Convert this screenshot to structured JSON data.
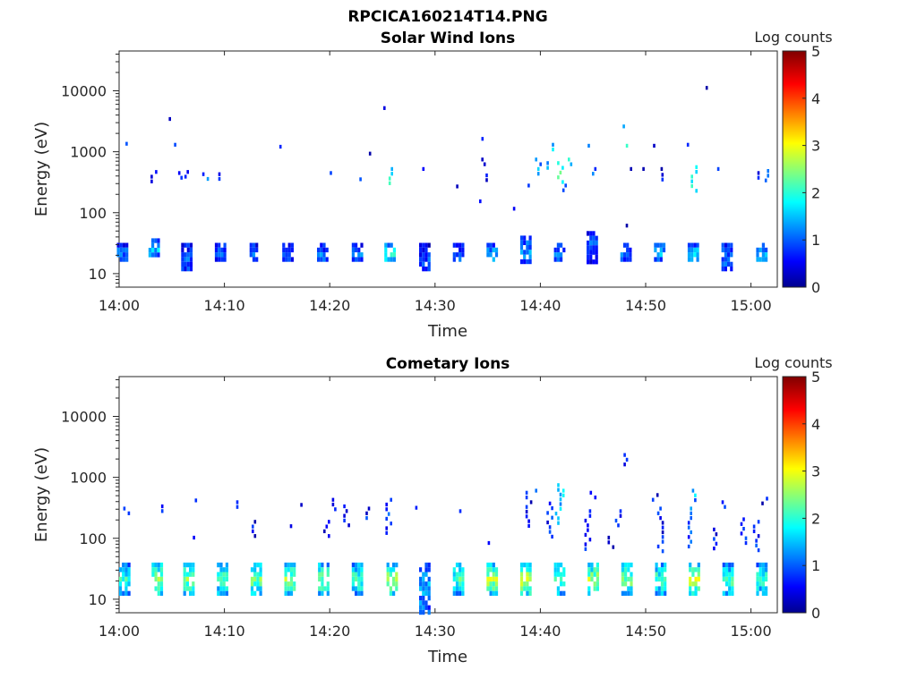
{
  "figure_title": "RPCICA160214T14.PNG",
  "chart_data": [
    {
      "type": "heatmap",
      "title": "Solar Wind Ions",
      "xlabel": "Time",
      "ylabel": "Energy (eV)",
      "x_ticks": [
        "14:00",
        "14:10",
        "14:20",
        "14:30",
        "14:40",
        "14:50",
        "15:00"
      ],
      "x_range_minutes": [
        0,
        62.5
      ],
      "y_scale": "log",
      "y_ticks": [
        10,
        100,
        1000,
        10000
      ],
      "y_range_eV": [
        6,
        45000
      ],
      "colorbar": {
        "label": "Log counts",
        "ticks": [
          0,
          1,
          2,
          3,
          4,
          5
        ],
        "range": [
          0,
          5
        ],
        "colormap": "jet"
      },
      "bursts": [
        {
          "t": 0.3,
          "e_lo": 16,
          "e_hi": 32,
          "v": 1.0
        },
        {
          "t": 3.3,
          "e_lo": 20,
          "e_hi": 38,
          "v": 1.4
        },
        {
          "t": 6.4,
          "e_lo": 12,
          "e_hi": 32,
          "v": 1.0
        },
        {
          "t": 9.6,
          "e_lo": 16,
          "e_hi": 32,
          "v": 1.0
        },
        {
          "t": 12.9,
          "e_lo": 16,
          "e_hi": 32,
          "v": 1.0
        },
        {
          "t": 16.0,
          "e_lo": 16,
          "e_hi": 32,
          "v": 1.0
        },
        {
          "t": 19.3,
          "e_lo": 16,
          "e_hi": 32,
          "v": 1.0
        },
        {
          "t": 22.6,
          "e_lo": 16,
          "e_hi": 32,
          "v": 1.0
        },
        {
          "t": 25.7,
          "e_lo": 16,
          "e_hi": 32,
          "v": 1.8
        },
        {
          "t": 29.0,
          "e_lo": 11,
          "e_hi": 32,
          "v": 0.8
        },
        {
          "t": 32.2,
          "e_lo": 16,
          "e_hi": 32,
          "v": 1.0
        },
        {
          "t": 35.4,
          "e_lo": 16,
          "e_hi": 32,
          "v": 1.4
        },
        {
          "t": 38.6,
          "e_lo": 16,
          "e_hi": 42,
          "v": 1.2
        },
        {
          "t": 41.8,
          "e_lo": 16,
          "e_hi": 32,
          "v": 1.0
        },
        {
          "t": 44.9,
          "e_lo": 16,
          "e_hi": 50,
          "v": 1.0
        },
        {
          "t": 48.1,
          "e_lo": 16,
          "e_hi": 32,
          "v": 0.9
        },
        {
          "t": 51.3,
          "e_lo": 16,
          "e_hi": 32,
          "v": 1.3
        },
        {
          "t": 54.5,
          "e_lo": 16,
          "e_hi": 32,
          "v": 1.5
        },
        {
          "t": 57.7,
          "e_lo": 12,
          "e_hi": 32,
          "v": 1.0
        },
        {
          "t": 61.0,
          "e_lo": 16,
          "e_hi": 32,
          "v": 1.3
        }
      ],
      "spots": [
        {
          "t": 0.6,
          "e_lo": 1250,
          "e_hi": 1450,
          "v": 0.6
        },
        {
          "t": 3.2,
          "e_lo": 300,
          "e_hi": 500,
          "v": 0.8
        },
        {
          "t": 4.5,
          "e_lo": 3300,
          "e_hi": 3700,
          "v": 0.5
        },
        {
          "t": 5.0,
          "e_lo": 1100,
          "e_hi": 1400,
          "v": 1.1
        },
        {
          "t": 5.6,
          "e_lo": 320,
          "e_hi": 480,
          "v": 0.8
        },
        {
          "t": 6.2,
          "e_lo": 380,
          "e_hi": 500,
          "v": 0.8
        },
        {
          "t": 8.1,
          "e_lo": 300,
          "e_hi": 460,
          "v": 1.2
        },
        {
          "t": 9.2,
          "e_lo": 330,
          "e_hi": 460,
          "v": 0.6
        },
        {
          "t": 15.0,
          "e_lo": 1150,
          "e_hi": 1300,
          "v": 0.6
        },
        {
          "t": 20.0,
          "e_lo": 420,
          "e_hi": 480,
          "v": 0.6
        },
        {
          "t": 22.6,
          "e_lo": 300,
          "e_hi": 380,
          "v": 0.8
        },
        {
          "t": 23.5,
          "e_lo": 950,
          "e_hi": 1000,
          "v": 0.6
        },
        {
          "t": 25.3,
          "e_lo": 5000,
          "e_hi": 5600,
          "v": 0.5
        },
        {
          "t": 25.8,
          "e_lo": 280,
          "e_hi": 560,
          "v": 1.9
        },
        {
          "t": 29.0,
          "e_lo": 500,
          "e_hi": 560,
          "v": 0.6
        },
        {
          "t": 32.0,
          "e_lo": 260,
          "e_hi": 290,
          "v": 0.6
        },
        {
          "t": 34.4,
          "e_lo": 1600,
          "e_hi": 1750,
          "v": 0.6
        },
        {
          "t": 34.6,
          "e_lo": 550,
          "e_hi": 800,
          "v": 0.6
        },
        {
          "t": 34.8,
          "e_lo": 300,
          "e_hi": 440,
          "v": 0.6
        },
        {
          "t": 34.4,
          "e_lo": 150,
          "e_hi": 165,
          "v": 0.6
        },
        {
          "t": 37.4,
          "e_lo": 115,
          "e_hi": 125,
          "v": 0.6
        },
        {
          "t": 39.0,
          "e_lo": 230,
          "e_hi": 300,
          "v": 1.1
        },
        {
          "t": 39.7,
          "e_lo": 400,
          "e_hi": 800,
          "v": 1.3
        },
        {
          "t": 40.8,
          "e_lo": 500,
          "e_hi": 700,
          "v": 1.2
        },
        {
          "t": 41.3,
          "e_lo": 1000,
          "e_hi": 1400,
          "v": 1.5
        },
        {
          "t": 41.8,
          "e_lo": 300,
          "e_hi": 700,
          "v": 2.2
        },
        {
          "t": 42.3,
          "e_lo": 220,
          "e_hi": 300,
          "v": 0.9
        },
        {
          "t": 42.6,
          "e_lo": 550,
          "e_hi": 800,
          "v": 1.8
        },
        {
          "t": 44.7,
          "e_lo": 1100,
          "e_hi": 1350,
          "v": 1.4
        },
        {
          "t": 44.9,
          "e_lo": 420,
          "e_hi": 560,
          "v": 1.1
        },
        {
          "t": 47.6,
          "e_lo": 2200,
          "e_hi": 2800,
          "v": 1.3
        },
        {
          "t": 47.9,
          "e_lo": 1050,
          "e_hi": 1350,
          "v": 1.8
        },
        {
          "t": 48.1,
          "e_lo": 60,
          "e_hi": 66,
          "v": 0.6
        },
        {
          "t": 48.5,
          "e_lo": 480,
          "e_hi": 560,
          "v": 0.6
        },
        {
          "t": 49.9,
          "e_lo": 500,
          "e_hi": 560,
          "v": 0.6
        },
        {
          "t": 50.7,
          "e_lo": 1200,
          "e_hi": 1350,
          "v": 0.6
        },
        {
          "t": 51.2,
          "e_lo": 500,
          "e_hi": 560,
          "v": 0.6
        },
        {
          "t": 51.7,
          "e_lo": 330,
          "e_hi": 450,
          "v": 0.8
        },
        {
          "t": 53.9,
          "e_lo": 1250,
          "e_hi": 1400,
          "v": 0.6
        },
        {
          "t": 54.5,
          "e_lo": 200,
          "e_hi": 600,
          "v": 1.9
        },
        {
          "t": 55.9,
          "e_lo": 11000,
          "e_hi": 12000,
          "v": 0.5
        },
        {
          "t": 57.0,
          "e_lo": 480,
          "e_hi": 560,
          "v": 0.6
        },
        {
          "t": 60.6,
          "e_lo": 330,
          "e_hi": 480,
          "v": 0.7
        },
        {
          "t": 61.3,
          "e_lo": 280,
          "e_hi": 520,
          "v": 1.3
        }
      ]
    },
    {
      "type": "heatmap",
      "title": "Cometary Ions",
      "xlabel": "Time",
      "ylabel": "Energy (eV)",
      "x_ticks": [
        "14:00",
        "14:10",
        "14:20",
        "14:30",
        "14:40",
        "14:50",
        "15:00"
      ],
      "x_range_minutes": [
        0,
        62.5
      ],
      "y_scale": "log",
      "y_ticks": [
        10,
        100,
        1000,
        10000
      ],
      "y_range_eV": [
        6,
        45000
      ],
      "colorbar": {
        "label": "Log counts",
        "ticks": [
          0,
          1,
          2,
          3,
          4,
          5
        ],
        "range": [
          0,
          5
        ],
        "colormap": "jet"
      },
      "bursts": [
        {
          "t": 0.5,
          "e_lo": 13,
          "e_hi": 40,
          "v": 1.8
        },
        {
          "t": 3.6,
          "e_lo": 13,
          "e_hi": 40,
          "v": 2.4
        },
        {
          "t": 6.6,
          "e_lo": 13,
          "e_hi": 40,
          "v": 2.2
        },
        {
          "t": 9.8,
          "e_lo": 13,
          "e_hi": 40,
          "v": 2.0
        },
        {
          "t": 13.0,
          "e_lo": 13,
          "e_hi": 40,
          "v": 2.2
        },
        {
          "t": 16.2,
          "e_lo": 13,
          "e_hi": 40,
          "v": 2.3
        },
        {
          "t": 19.4,
          "e_lo": 13,
          "e_hi": 40,
          "v": 2.2
        },
        {
          "t": 22.6,
          "e_lo": 13,
          "e_hi": 40,
          "v": 2.0
        },
        {
          "t": 25.9,
          "e_lo": 13,
          "e_hi": 40,
          "v": 2.5
        },
        {
          "t": 29.0,
          "e_lo": 6.5,
          "e_hi": 40,
          "v": 1.3
        },
        {
          "t": 32.2,
          "e_lo": 13,
          "e_hi": 40,
          "v": 2.0
        },
        {
          "t": 35.4,
          "e_lo": 13,
          "e_hi": 40,
          "v": 2.4
        },
        {
          "t": 38.6,
          "e_lo": 13,
          "e_hi": 40,
          "v": 2.6
        },
        {
          "t": 41.8,
          "e_lo": 13,
          "e_hi": 40,
          "v": 2.1
        },
        {
          "t": 45.0,
          "e_lo": 13,
          "e_hi": 40,
          "v": 2.4
        },
        {
          "t": 48.2,
          "e_lo": 13,
          "e_hi": 40,
          "v": 2.2
        },
        {
          "t": 51.4,
          "e_lo": 13,
          "e_hi": 40,
          "v": 2.0
        },
        {
          "t": 54.6,
          "e_lo": 13,
          "e_hi": 40,
          "v": 2.5
        },
        {
          "t": 57.8,
          "e_lo": 13,
          "e_hi": 40,
          "v": 2.0
        },
        {
          "t": 61.0,
          "e_lo": 13,
          "e_hi": 40,
          "v": 1.9
        }
      ],
      "spots": [
        {
          "t": 0.6,
          "e_lo": 220,
          "e_hi": 330,
          "v": 0.6
        },
        {
          "t": 4.2,
          "e_lo": 260,
          "e_hi": 360,
          "v": 0.6
        },
        {
          "t": 7.4,
          "e_lo": 400,
          "e_hi": 450,
          "v": 0.6
        },
        {
          "t": 7.0,
          "e_lo": 100,
          "e_hi": 110,
          "v": 0.6
        },
        {
          "t": 10.9,
          "e_lo": 300,
          "e_hi": 420,
          "v": 0.6
        },
        {
          "t": 12.8,
          "e_lo": 100,
          "e_hi": 200,
          "v": 0.6
        },
        {
          "t": 16.0,
          "e_lo": 150,
          "e_hi": 170,
          "v": 0.6
        },
        {
          "t": 17.2,
          "e_lo": 340,
          "e_hi": 380,
          "v": 0.6
        },
        {
          "t": 19.6,
          "e_lo": 100,
          "e_hi": 200,
          "v": 0.6
        },
        {
          "t": 20.2,
          "e_lo": 280,
          "e_hi": 460,
          "v": 0.6
        },
        {
          "t": 21.5,
          "e_lo": 140,
          "e_hi": 360,
          "v": 0.6
        },
        {
          "t": 23.4,
          "e_lo": 200,
          "e_hi": 330,
          "v": 0.6
        },
        {
          "t": 25.5,
          "e_lo": 120,
          "e_hi": 460,
          "v": 0.8
        },
        {
          "t": 27.9,
          "e_lo": 310,
          "e_hi": 340,
          "v": 0.6
        },
        {
          "t": 32.5,
          "e_lo": 260,
          "e_hi": 300,
          "v": 0.6
        },
        {
          "t": 35.0,
          "e_lo": 80,
          "e_hi": 90,
          "v": 0.6
        },
        {
          "t": 38.8,
          "e_lo": 150,
          "e_hi": 600,
          "v": 0.6
        },
        {
          "t": 39.7,
          "e_lo": 500,
          "e_hi": 650,
          "v": 1.2
        },
        {
          "t": 40.8,
          "e_lo": 100,
          "e_hi": 400,
          "v": 0.7
        },
        {
          "t": 41.6,
          "e_lo": 150,
          "e_hi": 800,
          "v": 1.5
        },
        {
          "t": 42.3,
          "e_lo": 480,
          "e_hi": 650,
          "v": 1.8
        },
        {
          "t": 44.4,
          "e_lo": 60,
          "e_hi": 300,
          "v": 0.9
        },
        {
          "t": 44.9,
          "e_lo": 400,
          "e_hi": 600,
          "v": 0.6
        },
        {
          "t": 46.6,
          "e_lo": 60,
          "e_hi": 110,
          "v": 0.6
        },
        {
          "t": 47.3,
          "e_lo": 150,
          "e_hi": 300,
          "v": 0.9
        },
        {
          "t": 47.9,
          "e_lo": 1500,
          "e_hi": 2500,
          "v": 0.6
        },
        {
          "t": 50.8,
          "e_lo": 420,
          "e_hi": 550,
          "v": 0.6
        },
        {
          "t": 51.3,
          "e_lo": 60,
          "e_hi": 330,
          "v": 0.7
        },
        {
          "t": 54.2,
          "e_lo": 70,
          "e_hi": 330,
          "v": 1.0
        },
        {
          "t": 54.6,
          "e_lo": 350,
          "e_hi": 650,
          "v": 1.4
        },
        {
          "t": 56.6,
          "e_lo": 60,
          "e_hi": 150,
          "v": 0.6
        },
        {
          "t": 57.2,
          "e_lo": 280,
          "e_hi": 420,
          "v": 0.6
        },
        {
          "t": 59.2,
          "e_lo": 80,
          "e_hi": 220,
          "v": 0.6
        },
        {
          "t": 60.4,
          "e_lo": 60,
          "e_hi": 200,
          "v": 0.7
        },
        {
          "t": 61.2,
          "e_lo": 350,
          "e_hi": 480,
          "v": 0.6
        }
      ]
    }
  ]
}
